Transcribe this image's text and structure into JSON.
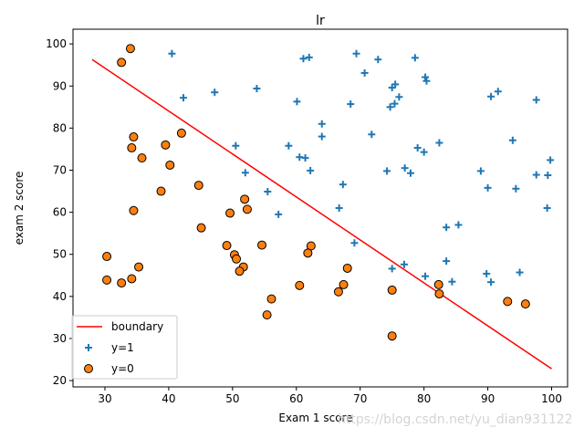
{
  "chart_data": {
    "type": "scatter",
    "title": "lr",
    "xlabel": "Exam 1 score",
    "ylabel": "exam 2 score",
    "xlim": [
      25,
      102.5
    ],
    "ylim": [
      18.5,
      103.5
    ],
    "xticks": [
      30,
      40,
      50,
      60,
      70,
      80,
      90,
      100
    ],
    "yticks": [
      20,
      30,
      40,
      50,
      60,
      70,
      80,
      90,
      100
    ],
    "grid": false,
    "legend_position": "lower-left",
    "boundary": {
      "name": "boundary",
      "color": "#ff0000",
      "x": [
        28,
        100
      ],
      "y": [
        96.3,
        22.8
      ]
    },
    "series": [
      {
        "name": "y=1",
        "marker": "plus",
        "color": "#1f77b4",
        "points": [
          [
            40.5,
            97.7
          ],
          [
            42.3,
            87.2
          ],
          [
            47.2,
            88.5
          ],
          [
            53.8,
            89.4
          ],
          [
            60.1,
            86.3
          ],
          [
            61.1,
            96.5
          ],
          [
            62.0,
            96.8
          ],
          [
            69.4,
            97.7
          ],
          [
            72.8,
            96.3
          ],
          [
            70.7,
            93.1
          ],
          [
            75.0,
            89.6
          ],
          [
            75.5,
            90.4
          ],
          [
            76.1,
            87.4
          ],
          [
            75.4,
            85.8
          ],
          [
            74.7,
            85.0
          ],
          [
            68.5,
            85.7
          ],
          [
            78.6,
            96.7
          ],
          [
            80.2,
            92.1
          ],
          [
            80.4,
            91.2
          ],
          [
            91.6,
            88.7
          ],
          [
            90.5,
            87.5
          ],
          [
            97.6,
            86.7
          ],
          [
            64.0,
            81.0
          ],
          [
            64.0,
            78.0
          ],
          [
            71.8,
            78.5
          ],
          [
            58.8,
            75.8
          ],
          [
            50.5,
            75.8
          ],
          [
            60.5,
            73.1
          ],
          [
            61.4,
            72.9
          ],
          [
            62.2,
            69.9
          ],
          [
            52.0,
            69.4
          ],
          [
            82.4,
            76.5
          ],
          [
            79.0,
            75.3
          ],
          [
            80.0,
            74.3
          ],
          [
            77.0,
            70.5
          ],
          [
            77.9,
            69.3
          ],
          [
            74.2,
            69.8
          ],
          [
            93.9,
            77.1
          ],
          [
            88.9,
            69.8
          ],
          [
            97.6,
            68.9
          ],
          [
            99.4,
            68.8
          ],
          [
            99.8,
            72.4
          ],
          [
            90.0,
            65.8
          ],
          [
            94.4,
            65.6
          ],
          [
            99.3,
            61.0
          ],
          [
            67.3,
            66.6
          ],
          [
            55.5,
            64.9
          ],
          [
            66.7,
            61.0
          ],
          [
            57.2,
            59.5
          ],
          [
            83.5,
            56.4
          ],
          [
            85.4,
            57.0
          ],
          [
            69.1,
            52.7
          ],
          [
            76.9,
            47.6
          ],
          [
            75.0,
            46.6
          ],
          [
            83.5,
            48.4
          ],
          [
            80.2,
            44.8
          ],
          [
            84.4,
            43.5
          ],
          [
            89.8,
            45.4
          ],
          [
            90.5,
            43.4
          ],
          [
            95.0,
            45.7
          ]
        ]
      },
      {
        "name": "y=0",
        "marker": "circle",
        "color": "#ff7f0e",
        "points": [
          [
            34.0,
            98.9
          ],
          [
            32.6,
            95.6
          ],
          [
            34.5,
            77.9
          ],
          [
            34.2,
            75.3
          ],
          [
            35.8,
            72.9
          ],
          [
            39.5,
            76.0
          ],
          [
            42.0,
            78.8
          ],
          [
            40.2,
            71.2
          ],
          [
            38.8,
            65.0
          ],
          [
            44.7,
            66.4
          ],
          [
            34.5,
            60.4
          ],
          [
            45.1,
            56.3
          ],
          [
            49.6,
            59.8
          ],
          [
            51.9,
            63.1
          ],
          [
            52.3,
            60.7
          ],
          [
            49.1,
            52.1
          ],
          [
            50.3,
            49.9
          ],
          [
            50.6,
            48.9
          ],
          [
            51.7,
            47.0
          ],
          [
            51.1,
            46.0
          ],
          [
            54.6,
            52.2
          ],
          [
            62.3,
            52.0
          ],
          [
            61.8,
            50.3
          ],
          [
            68.0,
            46.7
          ],
          [
            30.3,
            49.5
          ],
          [
            30.3,
            43.9
          ],
          [
            32.6,
            43.2
          ],
          [
            34.2,
            44.2
          ],
          [
            35.3,
            47.0
          ],
          [
            56.1,
            39.4
          ],
          [
            55.4,
            35.6
          ],
          [
            60.5,
            42.6
          ],
          [
            66.6,
            41.1
          ],
          [
            67.4,
            42.8
          ],
          [
            75.0,
            41.5
          ],
          [
            82.3,
            42.8
          ],
          [
            82.4,
            40.6
          ],
          [
            93.1,
            38.8
          ],
          [
            95.9,
            38.2
          ],
          [
            75.0,
            30.6
          ]
        ]
      }
    ]
  },
  "watermark": "https://blog.csdn.net/yu_dian931122"
}
